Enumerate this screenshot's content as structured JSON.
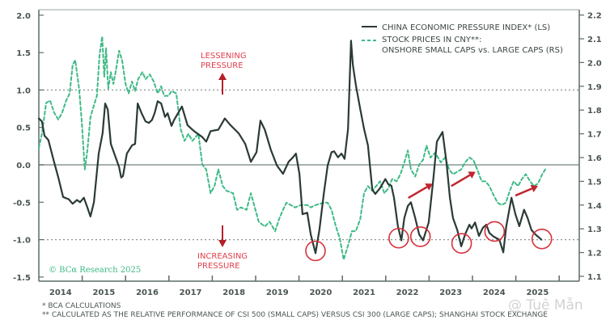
{
  "chart_data": {
    "type": "line",
    "title": "",
    "xlim": [
      2013.0,
      2025.47
    ],
    "x_tick_labels": [
      "2014",
      "2015",
      "2016",
      "2017",
      "2018",
      "2019",
      "2020",
      "2021",
      "2022",
      "2023",
      "2024",
      "2025"
    ],
    "left_axis": {
      "ylim": [
        -1.5,
        2.0
      ],
      "ticks": [
        "2.0",
        "1.5",
        "1.0",
        "0.5",
        "0.0",
        "-0.5",
        "-1.0",
        "-1.5"
      ],
      "tick_values": [
        2.0,
        1.5,
        1.0,
        0.5,
        0.0,
        -0.5,
        -1.0,
        -1.5
      ]
    },
    "right_axis": {
      "ylim": [
        1.1,
        2.2
      ],
      "ticks": [
        "2.2",
        "2.1",
        "2.0",
        "1.9",
        "1.8",
        "1.7",
        "1.6",
        "1.5",
        "1.4",
        "1.3",
        "1.2",
        "1.1"
      ],
      "tick_values": [
        2.2,
        2.1,
        2.0,
        1.9,
        1.8,
        1.7,
        1.6,
        1.5,
        1.4,
        1.3,
        1.2,
        1.1
      ]
    },
    "reference_lines": [
      {
        "axis": "left",
        "value": 1.0,
        "style": "dotted"
      },
      {
        "axis": "left",
        "value": -1.0,
        "style": "dotted"
      },
      {
        "axis": "left",
        "value": 0.0,
        "style": "solid"
      }
    ],
    "legend_position": "top-right",
    "series": [
      {
        "name": "CHINA ECONOMIC PRESSURE INDEX* (LS)",
        "axis": "left",
        "color": "#2b3a36",
        "style": "solid",
        "x": [
          2014.0,
          2014.07,
          2014.13,
          2014.22,
          2014.35,
          2014.45,
          2014.56,
          2014.69,
          2014.78,
          2014.88,
          2014.95,
          2015.04,
          2015.12,
          2015.19,
          2015.27,
          2015.38,
          2015.47,
          2015.53,
          2015.59,
          2015.66,
          2015.74,
          2015.85,
          2015.9,
          2015.94,
          2016.03,
          2016.15,
          2016.22,
          2016.28,
          2016.37,
          2016.46,
          2016.54,
          2016.61,
          2016.67,
          2016.74,
          2016.82,
          2016.91,
          2016.97,
          2017.06,
          2017.12,
          2017.3,
          2017.43,
          2017.58,
          2017.77,
          2017.86,
          2017.96,
          2018.14,
          2018.29,
          2018.42,
          2018.61,
          2018.76,
          2018.89,
          2019.02,
          2019.11,
          2019.21,
          2019.35,
          2019.49,
          2019.63,
          2019.76,
          2019.86,
          2019.93,
          2020.01,
          2020.08,
          2020.19,
          2020.27,
          2020.38,
          2020.47,
          2020.57,
          2020.66,
          2020.75,
          2020.81,
          2020.9,
          2020.98,
          2021.05,
          2021.13,
          2021.2,
          2021.24,
          2021.31,
          2021.41,
          2021.5,
          2021.59,
          2021.69,
          2021.76,
          2021.87,
          2021.99,
          2022.06,
          2022.13,
          2022.19,
          2022.28,
          2022.36,
          2022.43,
          2022.51,
          2022.58,
          2022.68,
          2022.77,
          2022.86,
          2022.99,
          2023.1,
          2023.18,
          2023.31,
          2023.4,
          2023.48,
          2023.55,
          2023.65,
          2023.74,
          2023.83,
          2023.93,
          2023.98,
          2024.06,
          2024.15,
          2024.24,
          2024.32,
          2024.39,
          2024.49,
          2024.62,
          2024.71,
          2024.78,
          2024.9,
          2024.99,
          2025.08,
          2025.19,
          2025.27,
          2025.36,
          2025.45,
          2025.59
        ],
        "values": [
          0.62,
          0.58,
          0.39,
          0.33,
          0.04,
          -0.17,
          -0.43,
          -0.46,
          -0.52,
          -0.47,
          -0.5,
          -0.44,
          -0.57,
          -0.69,
          -0.5,
          0.15,
          0.42,
          0.82,
          0.74,
          0.28,
          0.15,
          -0.03,
          -0.17,
          -0.15,
          0.15,
          0.26,
          0.28,
          0.82,
          0.69,
          0.58,
          0.56,
          0.6,
          0.69,
          0.85,
          0.82,
          0.64,
          0.69,
          0.52,
          0.6,
          0.78,
          0.53,
          0.45,
          0.37,
          0.31,
          0.45,
          0.47,
          0.62,
          0.53,
          0.42,
          0.28,
          0.04,
          0.17,
          0.59,
          0.47,
          0.2,
          -0.01,
          -0.12,
          0.04,
          0.1,
          0.15,
          -0.12,
          -0.66,
          -0.64,
          -0.93,
          -1.18,
          -0.87,
          -0.39,
          -0.01,
          0.17,
          0.18,
          0.1,
          0.15,
          0.08,
          0.48,
          1.66,
          1.34,
          1.07,
          0.75,
          0.48,
          0.26,
          -0.33,
          -0.39,
          -0.31,
          -0.19,
          -0.26,
          -0.28,
          -0.44,
          -0.82,
          -1.01,
          -0.71,
          -0.55,
          -0.5,
          -0.71,
          -0.93,
          -1.01,
          -0.77,
          -0.17,
          0.31,
          0.44,
          0.04,
          -0.44,
          -0.71,
          -0.87,
          -1.09,
          -0.93,
          -0.8,
          -0.85,
          -0.77,
          -0.95,
          -0.84,
          -0.8,
          -0.91,
          -0.96,
          -1.0,
          -1.17,
          -0.82,
          -0.44,
          -0.66,
          -0.82,
          -0.6,
          -0.71,
          -0.87,
          -0.93,
          -1.0
        ]
      },
      {
        "name": "STOCK PRICES IN CNY**: ONSHORE SMALL CAPS vs. LARGE CAPS (RS)",
        "axis": "right",
        "color": "#3dba85",
        "style": "dashed",
        "x": [
          2014.0,
          2014.07,
          2014.17,
          2014.26,
          2014.35,
          2014.45,
          2014.54,
          2014.63,
          2014.71,
          2014.78,
          2014.84,
          2014.93,
          2014.99,
          2015.06,
          2015.12,
          2015.19,
          2015.27,
          2015.34,
          2015.4,
          2015.46,
          2015.51,
          2015.55,
          2015.6,
          2015.66,
          2015.72,
          2015.77,
          2015.85,
          2015.92,
          2016.0,
          2016.07,
          2016.15,
          2016.22,
          2016.29,
          2016.39,
          2016.46,
          2016.56,
          2016.65,
          2016.74,
          2016.82,
          2016.89,
          2016.99,
          2017.06,
          2017.17,
          2017.27,
          2017.36,
          2017.45,
          2017.54,
          2017.68,
          2017.77,
          2017.86,
          2017.96,
          2018.05,
          2018.14,
          2018.24,
          2018.33,
          2018.48,
          2018.57,
          2018.66,
          2018.79,
          2018.89,
          2018.98,
          2019.07,
          2019.21,
          2019.32,
          2019.45,
          2019.54,
          2019.63,
          2019.71,
          2019.91,
          2020.04,
          2020.19,
          2020.27,
          2020.38,
          2020.57,
          2020.66,
          2020.75,
          2020.85,
          2020.94,
          2021.03,
          2021.13,
          2021.22,
          2021.31,
          2021.41,
          2021.5,
          2021.59,
          2021.69,
          2021.78,
          2021.87,
          2021.97,
          2022.06,
          2022.15,
          2022.25,
          2022.34,
          2022.43,
          2022.51,
          2022.58,
          2022.68,
          2022.77,
          2022.86,
          2022.94,
          2023.03,
          2023.14,
          2023.27,
          2023.37,
          2023.46,
          2023.55,
          2023.65,
          2023.74,
          2023.83,
          2023.93,
          2024.02,
          2024.11,
          2024.21,
          2024.3,
          2024.39,
          2024.49,
          2024.58,
          2024.67,
          2024.77,
          2024.86,
          2024.95,
          2025.05,
          2025.14,
          2025.23,
          2025.33,
          2025.42,
          2025.51,
          2025.61,
          2025.68
        ],
        "values": [
          1.64,
          1.7,
          1.83,
          1.84,
          1.79,
          1.76,
          1.79,
          1.84,
          1.87,
          1.99,
          2.01,
          1.89,
          1.75,
          1.55,
          1.63,
          1.77,
          1.82,
          1.86,
          2.03,
          2.11,
          1.94,
          2.06,
          1.89,
          1.96,
          1.91,
          1.96,
          2.05,
          2.01,
          1.91,
          1.87,
          1.92,
          1.88,
          1.93,
          1.96,
          1.93,
          1.95,
          1.92,
          1.87,
          1.9,
          1.86,
          1.86,
          1.88,
          1.87,
          1.72,
          1.67,
          1.7,
          1.67,
          1.7,
          1.57,
          1.55,
          1.45,
          1.48,
          1.55,
          1.48,
          1.46,
          1.45,
          1.38,
          1.39,
          1.38,
          1.45,
          1.39,
          1.33,
          1.31,
          1.33,
          1.29,
          1.34,
          1.38,
          1.41,
          1.39,
          1.4,
          1.4,
          1.39,
          1.4,
          1.41,
          1.41,
          1.38,
          1.31,
          1.26,
          1.17,
          1.23,
          1.29,
          1.29,
          1.34,
          1.45,
          1.48,
          1.46,
          1.48,
          1.5,
          1.45,
          1.47,
          1.51,
          1.5,
          1.53,
          1.58,
          1.63,
          1.55,
          1.52,
          1.57,
          1.59,
          1.65,
          1.6,
          1.62,
          1.58,
          1.6,
          1.55,
          1.53,
          1.54,
          1.55,
          1.58,
          1.6,
          1.59,
          1.55,
          1.5,
          1.5,
          1.48,
          1.44,
          1.41,
          1.4,
          1.41,
          1.46,
          1.5,
          1.48,
          1.51,
          1.53,
          1.5,
          1.48,
          1.49,
          1.53,
          1.55
        ]
      }
    ],
    "annotations": {
      "lessening": {
        "line1": "LESSENING",
        "line2": "PRESSURE",
        "arrow": "up"
      },
      "increasing": {
        "line1": "INCREASING",
        "line2": "PRESSURE",
        "arrow": "down"
      },
      "circled_troughs": [
        {
          "x": 2020.38,
          "value": -1.15
        },
        {
          "x": 2022.3,
          "value": -0.98
        },
        {
          "x": 2022.8,
          "value": -0.96
        },
        {
          "x": 2023.75,
          "value": -1.05
        },
        {
          "x": 2024.51,
          "value": -0.89
        },
        {
          "x": 2025.6,
          "value": -0.99
        }
      ],
      "trend_arrows_rs": [
        {
          "from": [
            2022.52,
            1.43
          ],
          "to": [
            2023.08,
            1.49
          ]
        },
        {
          "from": [
            2023.51,
            1.48
          ],
          "to": [
            2024.07,
            1.54
          ]
        },
        {
          "from": [
            2024.99,
            1.44
          ],
          "to": [
            2025.51,
            1.48
          ]
        }
      ],
      "annotation_color": "#d8303a"
    }
  },
  "legend": {
    "item1": "CHINA ECONOMIC PRESSURE INDEX* (LS)",
    "item2_line1": "STOCK PRICES IN CNY**:",
    "item2_line2": "ONSHORE SMALL CAPS vs. LARGE CAPS (RS)"
  },
  "copyright": "© BCα Research 2025",
  "footnotes": {
    "note1": "*  BCA CALCULATIONS",
    "note2": "** CALCULATED AS THE RELATIVE PERFORMANCE OF CSI 500 (SMALL CAPS) VERSUS CSI 300 (LARGE CAPS); SHANGHAI STOCK EXCHANGE"
  },
  "watermark": "@ Tuệ Mẫn"
}
